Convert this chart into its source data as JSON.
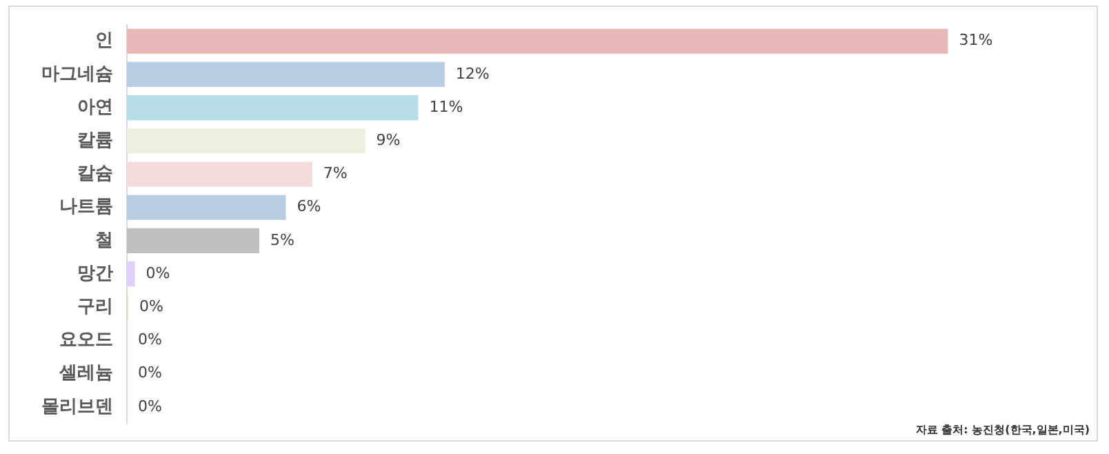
{
  "chart_data": {
    "type": "bar",
    "orientation": "horizontal",
    "categories": [
      "인",
      "마그네슘",
      "아연",
      "칼륨",
      "칼슘",
      "나트륨",
      "철",
      "망간",
      "구리",
      "요오드",
      "셀레늄",
      "몰리브덴"
    ],
    "values": [
      31,
      12,
      11,
      9,
      7,
      6,
      5,
      0.3,
      0.05,
      0,
      0,
      0
    ],
    "value_labels": [
      "31%",
      "12%",
      "11%",
      "9%",
      "7%",
      "6%",
      "5%",
      "0%",
      "0%",
      "0%",
      "0%",
      "0%"
    ],
    "colors": [
      "#e6b8b7",
      "#b8cce4",
      "#b7dde8",
      "#ebf1de",
      "#f2dcdb",
      "#b8cce4",
      "#bfbfbf",
      "#e0cffc",
      "#d8e4bc",
      "#dddddd",
      "#dddddd",
      "#dddddd"
    ],
    "legend": false,
    "tick_labels": "y",
    "annotations": [
      "자료 출처: 농진청(한국,일본,미국)"
    ]
  }
}
